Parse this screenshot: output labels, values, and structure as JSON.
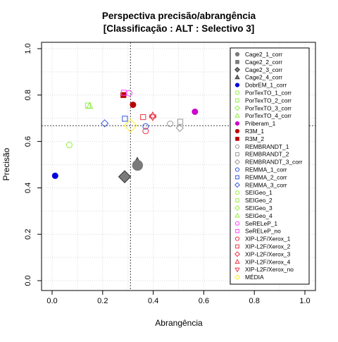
{
  "chart_data": {
    "type": "scatter",
    "title_line1": "Perspectiva precisão/abrangência",
    "title_line2": "[Classificação : ALT : Selectivo 3]",
    "xlabel": "Abrangência",
    "ylabel": "Precisão",
    "xlim": [
      0,
      1
    ],
    "ylim": [
      0,
      1
    ],
    "x_ticks": [
      "0.0",
      "0.2",
      "0.4",
      "0.6",
      "0.8",
      "1.0"
    ],
    "y_ticks": [
      "0.0",
      "0.2",
      "0.4",
      "0.6",
      "0.8",
      "1.0"
    ],
    "grid": true,
    "legend_position": "right",
    "reference_lines": {
      "x": 0.31,
      "y": 0.668
    },
    "series": [
      {
        "name": "Cage2_1_corr",
        "shape": "circle",
        "color": "#7a7a7a",
        "filled": true,
        "x": 0.0,
        "y": 0.0,
        "show_point": false
      },
      {
        "name": "Cage2_2_corr",
        "shape": "square",
        "color": "#7a7a7a",
        "filled": true,
        "x": 0.0,
        "y": 0.0,
        "show_point": false
      },
      {
        "name": "Cage2_3_corr",
        "shape": "diamond",
        "color": "#7a7a7a",
        "filled": true,
        "x": 0.287,
        "y": 0.448,
        "size": 1.7
      },
      {
        "name": "Cage2_4_corr",
        "shape": "triangle",
        "color": "#7a7a7a",
        "filled": true,
        "x": 0.337,
        "y": 0.512,
        "size": 1.3
      },
      {
        "name": "DobrEM_1_corr",
        "shape": "circle",
        "color": "#0000dd",
        "filled": true,
        "x": 0.012,
        "y": 0.452
      },
      {
        "name": "PorTexTO_1_corr",
        "shape": "circle",
        "color": "#90ee40",
        "filled": false,
        "x": 0.068,
        "y": 0.585
      },
      {
        "name": "PorTexTO_2_corr",
        "shape": "square",
        "color": "#90ee40",
        "filled": false,
        "x": 0.142,
        "y": 0.755
      },
      {
        "name": "PorTexTO_3_corr",
        "shape": "diamond",
        "color": "#90ee40",
        "filled": false,
        "x": 0.0,
        "y": 0.0,
        "show_point": false
      },
      {
        "name": "PorTexTO_4_corr",
        "shape": "triangle",
        "color": "#90ee40",
        "filled": false,
        "x": 0.148,
        "y": 0.752
      },
      {
        "name": "Priberam_1",
        "shape": "circle",
        "color": "#cc00cc",
        "filled": true,
        "x": 0.565,
        "y": 0.728
      },
      {
        "name": "R3M_1",
        "shape": "circle",
        "color": "#bb0000",
        "filled": true,
        "x": 0.32,
        "y": 0.758
      },
      {
        "name": "R3M_2",
        "shape": "square",
        "color": "#bb0000",
        "filled": true,
        "x": 0.282,
        "y": 0.8
      },
      {
        "name": "REMBRANDT_1",
        "shape": "circle",
        "color": "#999999",
        "filled": false,
        "x": 0.467,
        "y": 0.676
      },
      {
        "name": "REMBRANDT_2",
        "shape": "square",
        "color": "#999999",
        "filled": false,
        "x": 0.507,
        "y": 0.685
      },
      {
        "name": "REMBRANDT_3_corr",
        "shape": "diamond",
        "color": "#999999",
        "filled": false,
        "x": 0.505,
        "y": 0.658
      },
      {
        "name": "REMMA_1_corr",
        "shape": "circle",
        "color": "#3355dd",
        "filled": false,
        "x": 0.37,
        "y": 0.665
      },
      {
        "name": "REMMA_2_corr",
        "shape": "square",
        "color": "#3355dd",
        "filled": false,
        "x": 0.288,
        "y": 0.698
      },
      {
        "name": "REMMA_3_corr",
        "shape": "diamond",
        "color": "#3355dd",
        "filled": false,
        "x": 0.208,
        "y": 0.678
      },
      {
        "name": "SEIGeo_1",
        "shape": "circle",
        "color": "#99ee44",
        "filled": false,
        "x": 0.0,
        "y": 0.0,
        "show_point": false
      },
      {
        "name": "SEIGeo_2",
        "shape": "square",
        "color": "#99ee44",
        "filled": false,
        "x": 0.0,
        "y": 0.0,
        "show_point": false
      },
      {
        "name": "SEIGeo_3",
        "shape": "diamond",
        "color": "#99ee44",
        "filled": false,
        "x": 0.0,
        "y": 0.0,
        "show_point": false
      },
      {
        "name": "SEIGeo_4",
        "shape": "triangle",
        "color": "#99ee44",
        "filled": false,
        "x": 0.0,
        "y": 0.0,
        "show_point": false
      },
      {
        "name": "SeRELeP_1",
        "shape": "circle",
        "color": "#ff44ff",
        "filled": false,
        "x": 0.305,
        "y": 0.808
      },
      {
        "name": "SeRELeP_no",
        "shape": "square",
        "color": "#ff44ff",
        "filled": false,
        "x": 0.284,
        "y": 0.81
      },
      {
        "name": "XIP-L2F/Xerox_1",
        "shape": "circle",
        "color": "#ee3344",
        "filled": false,
        "x": 0.37,
        "y": 0.645
      },
      {
        "name": "XIP-L2F/Xerox_2",
        "shape": "square",
        "color": "#ee3344",
        "filled": false,
        "x": 0.36,
        "y": 0.705
      },
      {
        "name": "XIP-L2F/Xerox_3",
        "shape": "diamond",
        "color": "#ee3344",
        "filled": false,
        "x": 0.398,
        "y": 0.708
      },
      {
        "name": "XIP-L2F/Xerox_4",
        "shape": "triangle",
        "color": "#ee3344",
        "filled": false,
        "x": 0.398,
        "y": 0.712
      },
      {
        "name": "XIP-L2F/Xerox_no",
        "shape": "triangle-down",
        "color": "#ee3344",
        "filled": false,
        "x": 0.398,
        "y": 0.705
      },
      {
        "name": "MÉDIA",
        "shape": "diamond",
        "color": "#ffee22",
        "filled": false,
        "x": 0.31,
        "y": 0.668,
        "size": 1.8
      },
      {
        "name": "",
        "shape": "circle",
        "color": "#7a7a7a",
        "filled": true,
        "x": 0.338,
        "y": 0.497,
        "size": 1.8,
        "in_legend": false
      }
    ]
  }
}
